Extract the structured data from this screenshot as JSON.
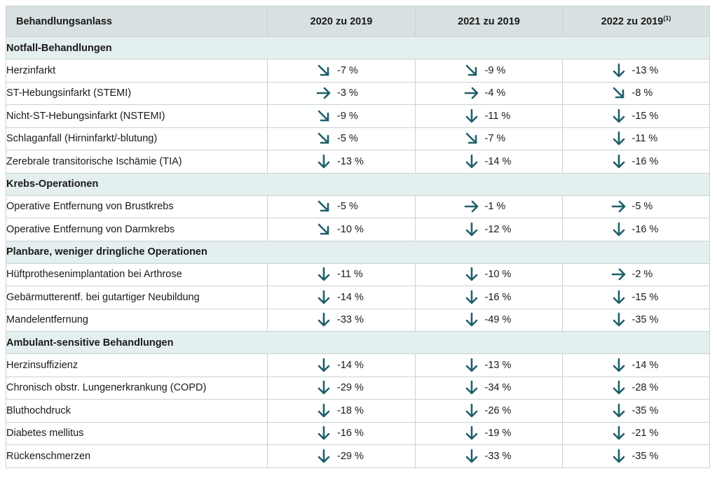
{
  "colors": {
    "arrow": "#1f5f6b",
    "header_bg": "#d8e1e1",
    "section_bg": "#e4efef",
    "border": "#c9d3d3"
  },
  "header": {
    "col0": "Behandlungsanlass",
    "col1": "2020 zu 2019",
    "col2": "2021 zu 2019",
    "col3": "2022 zu 2019",
    "col3_sup": "(1)"
  },
  "sections": [
    {
      "title": "Notfall-Behandlungen",
      "rows": [
        {
          "label": "Herzinfarkt",
          "indent": false,
          "cells": [
            {
              "arrow": "down-right-icon",
              "value": "-7 %"
            },
            {
              "arrow": "down-right-icon",
              "value": "-9 %"
            },
            {
              "arrow": "down-icon",
              "value": "-13 %"
            }
          ]
        },
        {
          "label": "ST-Hebungsinfarkt (STEMI)",
          "indent": true,
          "cells": [
            {
              "arrow": "right-icon",
              "value": "-3 %"
            },
            {
              "arrow": "right-icon",
              "value": "-4 %"
            },
            {
              "arrow": "down-right-icon",
              "value": "-8 %"
            }
          ]
        },
        {
          "label": "Nicht-ST-Hebungsinfarkt (NSTEMI)",
          "indent": true,
          "cells": [
            {
              "arrow": "down-right-icon",
              "value": "-9 %"
            },
            {
              "arrow": "down-icon",
              "value": "-11 %"
            },
            {
              "arrow": "down-icon",
              "value": "-15 %"
            }
          ]
        },
        {
          "label": "Schlaganfall (Hirninfarkt/-blutung)",
          "indent": false,
          "cells": [
            {
              "arrow": "down-right-icon",
              "value": "-5 %"
            },
            {
              "arrow": "down-right-icon",
              "value": "-7 %"
            },
            {
              "arrow": "down-icon",
              "value": "-11 %"
            }
          ]
        },
        {
          "label": "Zerebrale transitorische Ischämie (TIA)",
          "indent": false,
          "cells": [
            {
              "arrow": "down-icon",
              "value": "-13 %"
            },
            {
              "arrow": "down-icon",
              "value": "-14 %"
            },
            {
              "arrow": "down-icon",
              "value": "-16 %"
            }
          ]
        }
      ]
    },
    {
      "title": "Krebs-Operationen",
      "rows": [
        {
          "label": "Operative Entfernung von Brustkrebs",
          "indent": false,
          "cells": [
            {
              "arrow": "down-right-icon",
              "value": "-5 %"
            },
            {
              "arrow": "right-icon",
              "value": "-1 %"
            },
            {
              "arrow": "right-icon",
              "value": "-5 %"
            }
          ]
        },
        {
          "label": "Operative Entfernung von Darmkrebs",
          "indent": false,
          "cells": [
            {
              "arrow": "down-right-icon",
              "value": "-10 %"
            },
            {
              "arrow": "down-icon",
              "value": "-12 %"
            },
            {
              "arrow": "down-icon",
              "value": "-16 %"
            }
          ]
        }
      ]
    },
    {
      "title": "Planbare, weniger dringliche Operationen",
      "rows": [
        {
          "label": "Hüftprothesenimplantation bei Arthrose",
          "indent": false,
          "cells": [
            {
              "arrow": "down-icon",
              "value": "-11 %"
            },
            {
              "arrow": "down-icon",
              "value": "-10 %"
            },
            {
              "arrow": "right-icon",
              "value": "-2 %"
            }
          ]
        },
        {
          "label": "Gebärmutterentf. bei gutartiger Neubildung",
          "indent": false,
          "cells": [
            {
              "arrow": "down-icon",
              "value": "-14 %"
            },
            {
              "arrow": "down-icon",
              "value": "-16 %"
            },
            {
              "arrow": "down-icon",
              "value": "-15 %"
            }
          ]
        },
        {
          "label": "Mandelentfernung",
          "indent": false,
          "cells": [
            {
              "arrow": "down-icon",
              "value": "-33 %"
            },
            {
              "arrow": "down-icon",
              "value": "-49 %"
            },
            {
              "arrow": "down-icon",
              "value": "-35 %"
            }
          ]
        }
      ]
    },
    {
      "title": "Ambulant-sensitive Behandlungen",
      "rows": [
        {
          "label": "Herzinsuffizienz",
          "indent": false,
          "cells": [
            {
              "arrow": "down-icon",
              "value": "-14 %"
            },
            {
              "arrow": "down-icon",
              "value": "-13 %"
            },
            {
              "arrow": "down-icon",
              "value": "-14 %"
            }
          ]
        },
        {
          "label": "Chronisch obstr. Lungenerkrankung (COPD)",
          "indent": false,
          "cells": [
            {
              "arrow": "down-icon",
              "value": "-29 %"
            },
            {
              "arrow": "down-icon",
              "value": "-34 %"
            },
            {
              "arrow": "down-icon",
              "value": "-28 %"
            }
          ]
        },
        {
          "label": "Bluthochdruck",
          "indent": false,
          "cells": [
            {
              "arrow": "down-icon",
              "value": "-18 %"
            },
            {
              "arrow": "down-icon",
              "value": "-26 %"
            },
            {
              "arrow": "down-icon",
              "value": "-35 %"
            }
          ]
        },
        {
          "label": "Diabetes mellitus",
          "indent": false,
          "cells": [
            {
              "arrow": "down-icon",
              "value": "-16 %"
            },
            {
              "arrow": "down-icon",
              "value": "-19 %"
            },
            {
              "arrow": "down-icon",
              "value": "-21 %"
            }
          ]
        },
        {
          "label": "Rückenschmerzen",
          "indent": false,
          "cells": [
            {
              "arrow": "down-icon",
              "value": "-29 %"
            },
            {
              "arrow": "down-icon",
              "value": "-33 %"
            },
            {
              "arrow": "down-icon",
              "value": "-35 %"
            }
          ]
        }
      ]
    }
  ]
}
